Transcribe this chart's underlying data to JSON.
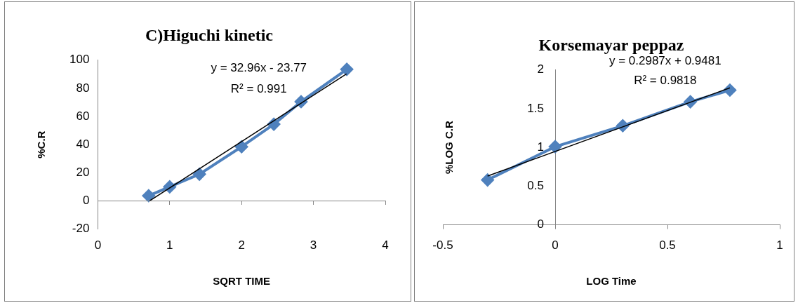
{
  "chart_data": [
    {
      "type": "line",
      "title": "C)Higuchi kinetic",
      "xlabel": "SQRT TIME",
      "ylabel": "%C.R",
      "xlim": [
        0,
        4
      ],
      "xticks": [
        0,
        1,
        2,
        3,
        4
      ],
      "ylim": [
        -20,
        100
      ],
      "yticks": [
        -20,
        0,
        20,
        40,
        60,
        80,
        100
      ],
      "grid": false,
      "legend": false,
      "marker": "diamond",
      "line_style": "solid",
      "series": [
        {
          "x": [
            0.707,
            1,
            1.414,
            2,
            2.449,
            2.828,
            3.464
          ],
          "values": [
            3.7,
            10,
            19,
            38.5,
            54.5,
            70.5,
            93.5
          ],
          "color": "#4f81bd"
        },
        {
          "type": "line",
          "marker": "none",
          "x": [
            0.72,
            3.46
          ],
          "values": [
            0,
            90.3
          ],
          "color": "#000000"
        }
      ],
      "ref_lines": [
        {
          "axis": "y",
          "value": 0,
          "color": "#868686",
          "line_style": "solid"
        }
      ],
      "annotations": [
        "y = 32.96x - 23.77",
        "R² = 0.991"
      ]
    },
    {
      "type": "line",
      "title": "Korsemayar peppaz",
      "xlabel": "LOG Time",
      "ylabel": "%LOG C.R",
      "xlim": [
        -0.5,
        1
      ],
      "xticks": [
        -0.5,
        0,
        0.5,
        1
      ],
      "ylim": [
        0,
        2
      ],
      "yticks": [
        0,
        0.5,
        1,
        1.5,
        2
      ],
      "grid": false,
      "legend": false,
      "marker": "diamond",
      "line_style": "solid",
      "series": [
        {
          "x": [
            -0.301,
            0,
            0.301,
            0.602,
            0.778
          ],
          "values": [
            0.58,
            1.01,
            1.28,
            1.59,
            1.74
          ],
          "color": "#4f81bd"
        },
        {
          "type": "line",
          "marker": "none",
          "x": [
            -0.301,
            0.778
          ],
          "values": [
            0.63,
            1.77
          ],
          "color": "#000000"
        }
      ],
      "annotations": [
        "y = 0.2987x + 0.9481",
        "R² = 0.9818"
      ]
    }
  ]
}
